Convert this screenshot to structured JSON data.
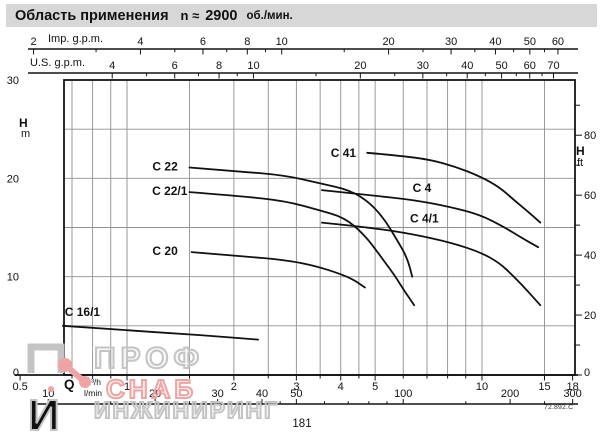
{
  "title": {
    "text": "Область применения",
    "n_label": "n ≈",
    "n_value": "2900",
    "unit": "об./мин."
  },
  "page_number": "181",
  "doc_code": "72.892.C",
  "watermark": {
    "logo_letter_top": "П",
    "logo_letter_bottom": "И",
    "line1": "ПРОФ",
    "line2": "СНАБ",
    "line3": "ИНЖИНИРИНГ",
    "gray": "#c4c4c4",
    "red": "#efa3a3"
  },
  "chart_data": {
    "type": "line",
    "title": "Область применения n ≈ 2900 об./мин.",
    "x_scale": "log",
    "x_unit": "m³/h",
    "x_range": [
      0.665,
      18.2
    ],
    "y_unit": "m",
    "y_range": [
      0,
      30
    ],
    "grid_x": [
      0.7,
      0.8,
      0.9,
      1,
      1.5,
      2,
      2.5,
      3,
      3.5,
      4,
      4.5,
      5,
      6,
      7,
      8,
      9,
      10,
      15
    ],
    "grid_y": [
      5,
      10,
      15,
      20,
      25
    ],
    "legend_position": "labels-on-curves",
    "axes": {
      "imp": {
        "name": "Imp. g.p.m.",
        "factor": 0.27276,
        "major": [
          2,
          4,
          6,
          8,
          10,
          20,
          30,
          40,
          50,
          60
        ],
        "minor": [
          3,
          5,
          7,
          9,
          15,
          25,
          35,
          45,
          55
        ]
      },
      "us": {
        "name": "U.S. g.p.m.",
        "factor": 0.227125,
        "major": [
          4,
          6,
          8,
          10,
          20,
          30,
          40,
          50,
          60,
          70
        ],
        "minor": [
          5,
          7,
          9,
          15,
          25,
          35,
          45,
          55,
          65
        ]
      },
      "head_left": {
        "name": "H",
        "unit": "m",
        "labels": [
          30,
          20,
          10,
          0
        ]
      },
      "head_right": {
        "name": "H",
        "unit": "ft",
        "factor": 0.3048,
        "major": [
          80,
          60,
          40,
          20,
          0
        ],
        "minor": [
          90,
          70,
          50,
          30,
          10
        ]
      },
      "flow": {
        "name": "Q",
        "unit_top": "m³/h",
        "unit_bottom": "l/min",
        "m3h_major": [
          0.5,
          1,
          2,
          3,
          4,
          5,
          10,
          15,
          18
        ],
        "m3h_minor": [
          0.7,
          0.8,
          0.9,
          1.5,
          2.5,
          3.5,
          4.5,
          6,
          7,
          8,
          9
        ],
        "lmin_factor": 0.06,
        "lmin_major": [
          10,
          20,
          30,
          40,
          50,
          100,
          200,
          300
        ],
        "lmin_minor": [
          15,
          25,
          35,
          45,
          60,
          70,
          80,
          90,
          150,
          250
        ]
      }
    },
    "series": [
      {
        "name": "C 22",
        "label_q": 1.39,
        "label_h": 21.2,
        "points": [
          [
            1.5,
            21.1
          ],
          [
            2.08,
            20.7
          ],
          [
            2.79,
            20.3
          ],
          [
            3.5,
            19.5
          ],
          [
            4.25,
            18.8
          ],
          [
            4.84,
            17.5
          ],
          [
            5.32,
            15.8
          ],
          [
            5.77,
            13.7
          ],
          [
            6.16,
            11.9
          ],
          [
            6.36,
            10.0
          ]
        ]
      },
      {
        "name": "C 22/1",
        "label_q": 1.48,
        "label_h": 18.7,
        "points": [
          [
            1.5,
            18.6
          ],
          [
            2.08,
            18.2
          ],
          [
            2.79,
            17.7
          ],
          [
            3.45,
            16.8
          ],
          [
            4.11,
            16.0
          ],
          [
            4.68,
            14.2
          ],
          [
            5.15,
            12.2
          ],
          [
            5.66,
            10.2
          ],
          [
            6.03,
            8.6
          ],
          [
            6.44,
            7.1
          ]
        ]
      },
      {
        "name": "C 20",
        "label_q": 1.39,
        "label_h": 12.6,
        "points": [
          [
            1.52,
            12.5
          ],
          [
            2.08,
            12.1
          ],
          [
            2.79,
            11.7
          ],
          [
            3.39,
            11.1
          ],
          [
            3.98,
            10.3
          ],
          [
            4.39,
            9.6
          ],
          [
            4.68,
            8.9
          ]
        ]
      },
      {
        "name": "C 16/1",
        "label_q": 0.84,
        "label_h": 6.4,
        "points": [
          [
            0.66,
            5.0
          ],
          [
            0.96,
            4.6
          ],
          [
            1.41,
            4.2
          ],
          [
            1.83,
            3.9
          ],
          [
            2.34,
            3.6
          ]
        ]
      },
      {
        "name": "C 41",
        "label_q": 4.42,
        "label_h": 22.6,
        "points": [
          [
            4.75,
            22.6
          ],
          [
            5.87,
            22.3
          ],
          [
            7.14,
            21.9
          ],
          [
            8.39,
            21.2
          ],
          [
            9.87,
            20.2
          ],
          [
            11.2,
            19.1
          ],
          [
            12.3,
            17.8
          ],
          [
            13.4,
            16.7
          ],
          [
            14.6,
            15.5
          ]
        ]
      },
      {
        "name": "C 4",
        "label_q": 7.2,
        "label_h": 19.0,
        "points": [
          [
            3.54,
            18.8
          ],
          [
            4.84,
            18.3
          ],
          [
            6.44,
            17.8
          ],
          [
            8.11,
            17.1
          ],
          [
            9.87,
            16.3
          ],
          [
            11.6,
            15.0
          ],
          [
            12.85,
            14.0
          ],
          [
            14.4,
            13.0
          ]
        ]
      },
      {
        "name": "C 4/1",
        "label_q": 7.55,
        "label_h": 15.9,
        "points": [
          [
            3.54,
            15.5
          ],
          [
            4.84,
            15.0
          ],
          [
            6.44,
            14.3
          ],
          [
            8.11,
            13.5
          ],
          [
            9.87,
            12.5
          ],
          [
            11.2,
            11.4
          ],
          [
            12.3,
            10.0
          ],
          [
            13.4,
            8.6
          ],
          [
            14.6,
            7.1
          ]
        ]
      }
    ],
    "colors": {
      "curve": "#111111",
      "grid": "#8f8f8f",
      "axis": "#141414"
    }
  }
}
